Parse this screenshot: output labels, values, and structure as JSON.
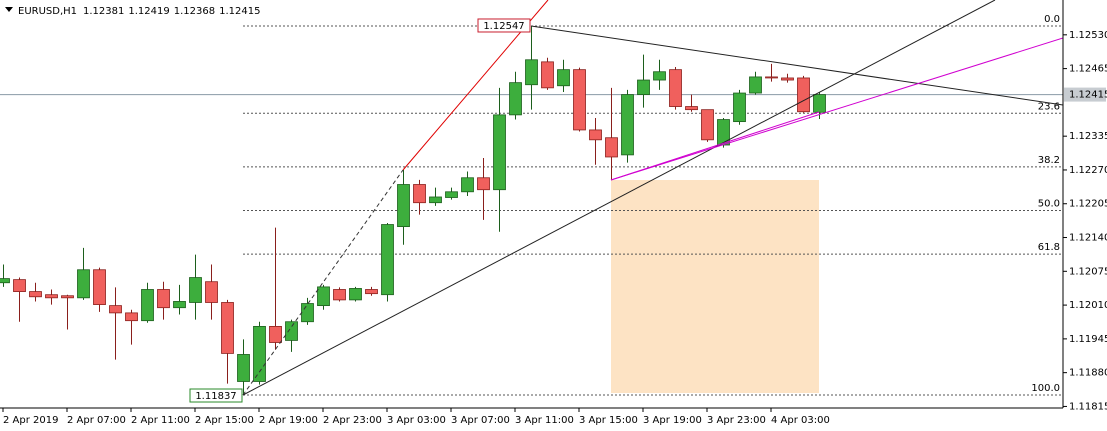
{
  "chart_data": {
    "type": "candlestick",
    "title": "EURUSD,H1",
    "categories": [
      "2 Apr 2019",
      null,
      null,
      null,
      "2 Apr 07:00",
      null,
      null,
      null,
      "2 Apr 11:00",
      null,
      null,
      null,
      "2 Apr 15:00",
      null,
      null,
      null,
      "2 Apr 19:00",
      null,
      null,
      null,
      "2 Apr 23:00",
      null,
      null,
      null,
      "3 Apr 03:00",
      null,
      null,
      null,
      "3 Apr 07:00",
      null,
      null,
      null,
      "3 Apr 11:00",
      null,
      null,
      null,
      "3 Apr 15:00",
      null,
      null,
      null,
      "3 Apr 19:00",
      null,
      null,
      null,
      "3 Apr 23:00",
      null,
      null,
      null,
      "4 Apr 03:00",
      null,
      null,
      null
    ],
    "open": [
      1.12053,
      1.12059,
      1.12036,
      1.1203,
      1.12028,
      1.12024,
      1.12078,
      1.12009,
      1.11995,
      1.1198,
      1.1204,
      1.12005,
      1.12015,
      1.12055,
      1.12015,
      1.11863,
      1.11863,
      1.11969,
      1.11942,
      1.11978,
      1.12009,
      1.1204,
      1.1202,
      1.1204,
      1.1203,
      1.12161,
      1.12242,
      1.12207,
      1.12217,
      1.12228,
      1.12255,
      1.12232,
      1.12376,
      1.12434,
      1.12478,
      1.12432,
      1.12463,
      1.12347,
      1.12332,
      1.12299,
      1.12415,
      1.12443,
      1.12463,
      1.12392,
      1.12386,
      1.12318,
      1.12363,
      1.12418,
      1.12449,
      1.12447,
      1.12447,
      1.12381
    ],
    "high": [
      1.12088,
      1.12063,
      1.12053,
      1.1204,
      1.1203,
      1.1212,
      1.12082,
      1.12044,
      1.12001,
      1.12053,
      1.12055,
      1.12049,
      1.12107,
      1.12088,
      1.1202,
      1.11944,
      1.11978,
      1.12159,
      1.11982,
      1.12024,
      1.12049,
      1.12044,
      1.12045,
      1.12045,
      1.12168,
      1.1227,
      1.12251,
      1.12236,
      1.12236,
      1.12267,
      1.12293,
      1.12428,
      1.12459,
      1.12547,
      1.12486,
      1.12482,
      1.12467,
      1.1237,
      1.12428,
      1.12424,
      1.12492,
      1.12482,
      1.12468,
      1.12415,
      1.12386,
      1.1237,
      1.12424,
      1.12459,
      1.12474,
      1.12455,
      1.12451,
      1.12419
    ],
    "low": [
      1.12045,
      1.11978,
      1.12017,
      1.12011,
      1.11963,
      1.1202,
      1.11997,
      1.11905,
      1.11934,
      1.11976,
      1.11982,
      1.11992,
      1.11982,
      1.11982,
      1.11859,
      1.11837,
      1.11857,
      1.11924,
      1.1192,
      1.11972,
      1.12001,
      1.12017,
      1.12017,
      1.12028,
      1.12017,
      1.12126,
      1.12184,
      1.12201,
      1.12213,
      1.1222,
      1.12174,
      1.12151,
      1.12367,
      1.12386,
      1.12424,
      1.1242,
      1.12344,
      1.1228,
      1.12251,
      1.12284,
      1.1239,
      1.12424,
      1.12386,
      1.12382,
      1.12324,
      1.12313,
      1.12357,
      1.12415,
      1.1244,
      1.12438,
      1.1238,
      1.12368
    ],
    "close": [
      1.12061,
      1.12036,
      1.12026,
      1.12024,
      1.12024,
      1.12078,
      1.12011,
      1.11995,
      1.1198,
      1.1204,
      1.12005,
      1.12017,
      1.12063,
      1.12015,
      1.11917,
      1.11915,
      1.11969,
      1.11938,
      1.11978,
      1.12013,
      1.12045,
      1.1202,
      1.12042,
      1.12032,
      1.12165,
      1.12242,
      1.12207,
      1.12218,
      1.12228,
      1.12255,
      1.12232,
      1.12376,
      1.12438,
      1.12482,
      1.12428,
      1.12463,
      1.12347,
      1.12328,
      1.12295,
      1.12415,
      1.12443,
      1.12459,
      1.12392,
      1.12386,
      1.12328,
      1.12367,
      1.12418,
      1.12449,
      1.12447,
      1.12443,
      1.12382,
      1.12415
    ],
    "up_color": "#3dae3d",
    "down_color": "#f0605d",
    "ylim": [
      1.11812,
      1.12597
    ],
    "yticks": [
      {
        "value": 1.1253,
        "label": "1.12530"
      },
      1.12465,
      1.12335,
      {
        "value": 1.1227,
        "label": "1.12270"
      },
      1.12205,
      {
        "value": 1.1214,
        "label": "1.12140"
      },
      1.12075,
      {
        "value": 1.1201,
        "label": "1.12010"
      },
      1.11945,
      {
        "value": 1.1188,
        "label": "1.11880"
      },
      1.11815
    ],
    "fibo_levels": [
      {
        "label": "0.0",
        "price": 1.12547
      },
      {
        "label": "23.6",
        "price": 1.12379
      },
      {
        "label": "38.2",
        "price": 1.12276
      },
      {
        "label": "50.0",
        "price": 1.12192
      },
      {
        "label": "61.8",
        "price": 1.12108
      },
      {
        "label": "100.0",
        "price": 1.11837
      }
    ],
    "high_marker": 1.12547,
    "low_marker": 1.11837
  }
}
